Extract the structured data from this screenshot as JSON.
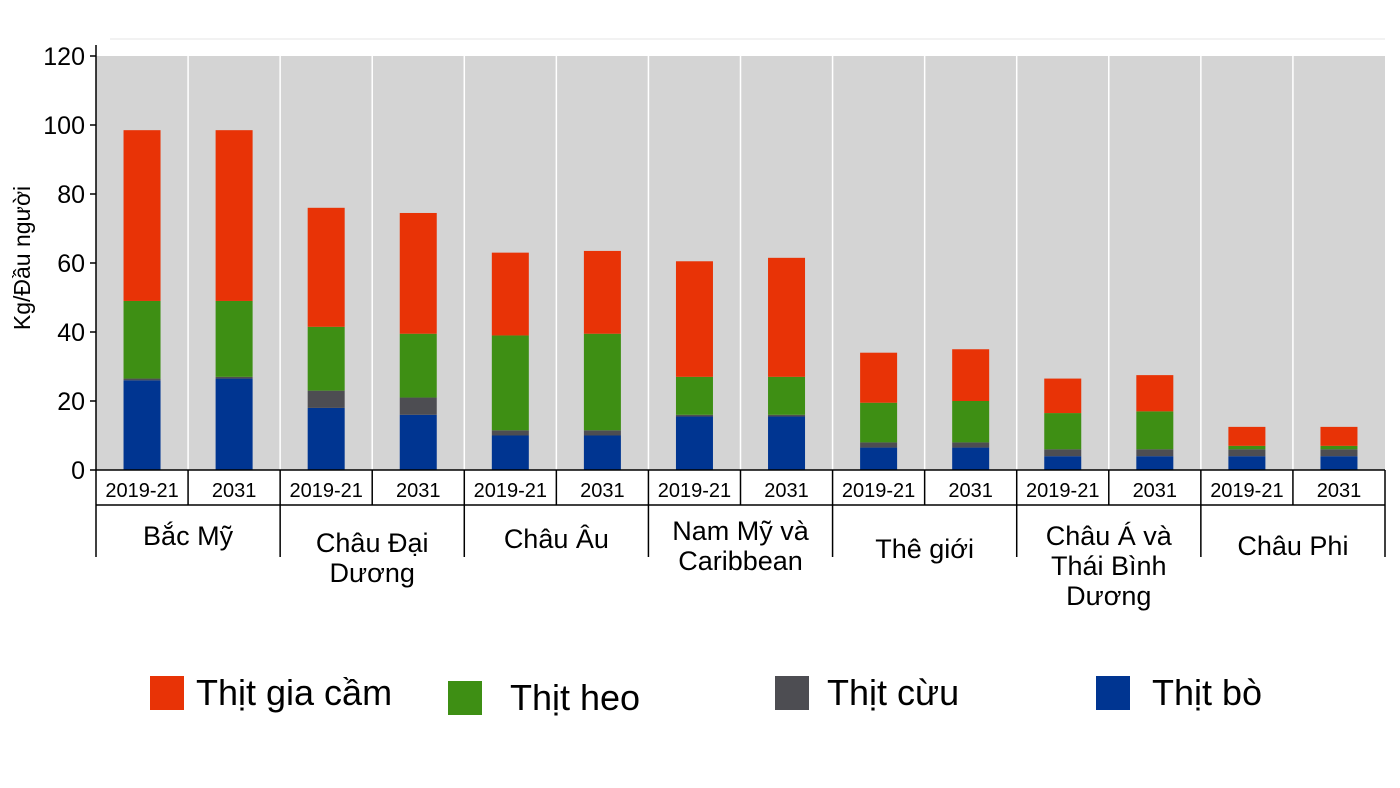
{
  "chart_data": {
    "type": "bar",
    "stacked": true,
    "ylabel": "Kg/Đầu người",
    "ylim": [
      0,
      120
    ],
    "yticks": [
      0,
      20,
      40,
      60,
      80,
      100,
      120
    ],
    "grid": false,
    "legend_position": "bottom",
    "groups": [
      {
        "label": "Bắc Mỹ",
        "categories": [
          "2019-21",
          "2031"
        ]
      },
      {
        "label": "Châu Đại Dương",
        "categories": [
          "2019-21",
          "2031"
        ]
      },
      {
        "label": "Châu Âu",
        "categories": [
          "2019-21",
          "2031"
        ]
      },
      {
        "label": "Nam Mỹ và Caribbean",
        "categories": [
          "2019-21",
          "2031"
        ]
      },
      {
        "label": "Thê giới",
        "categories": [
          "2019-21",
          "2031"
        ]
      },
      {
        "label": "Châu Á và Thái Bình Dương",
        "categories": [
          "2019-21",
          "2031"
        ]
      },
      {
        "label": "Châu Phi",
        "categories": [
          "2019-21",
          "2031"
        ]
      }
    ],
    "series": [
      {
        "name": "Thịt bò",
        "color": "#003591",
        "values": [
          26,
          26.5,
          18,
          16,
          10,
          10,
          15.5,
          15.5,
          6.5,
          6.5,
          4,
          4,
          4,
          4
        ]
      },
      {
        "name": "Thịt cừu",
        "color": "#4d4d52",
        "values": [
          0.5,
          0.5,
          5,
          5,
          1.5,
          1.5,
          0.5,
          0.5,
          1.5,
          1.5,
          2,
          2,
          2,
          2
        ]
      },
      {
        "name": "Thịt heo",
        "color": "#3e8f14",
        "values": [
          22.5,
          22,
          18.5,
          18.5,
          27.5,
          28,
          11,
          11,
          11.5,
          12,
          10.5,
          11,
          1,
          1
        ]
      },
      {
        "name": "Thịt gia cầm",
        "color": "#e83306",
        "values": [
          49.5,
          49.5,
          34.5,
          35,
          24,
          24,
          33.5,
          34.5,
          14.5,
          15,
          10,
          10.5,
          5.5,
          5.5
        ]
      }
    ]
  },
  "legend": {
    "items": [
      {
        "label": "Thịt gia cầm",
        "color": "#e83306"
      },
      {
        "label": "Thịt heo",
        "color": "#3e8f14"
      },
      {
        "label": "Thịt cừu",
        "color": "#4d4d52"
      },
      {
        "label": "Thịt bò",
        "color": "#003591"
      }
    ]
  }
}
